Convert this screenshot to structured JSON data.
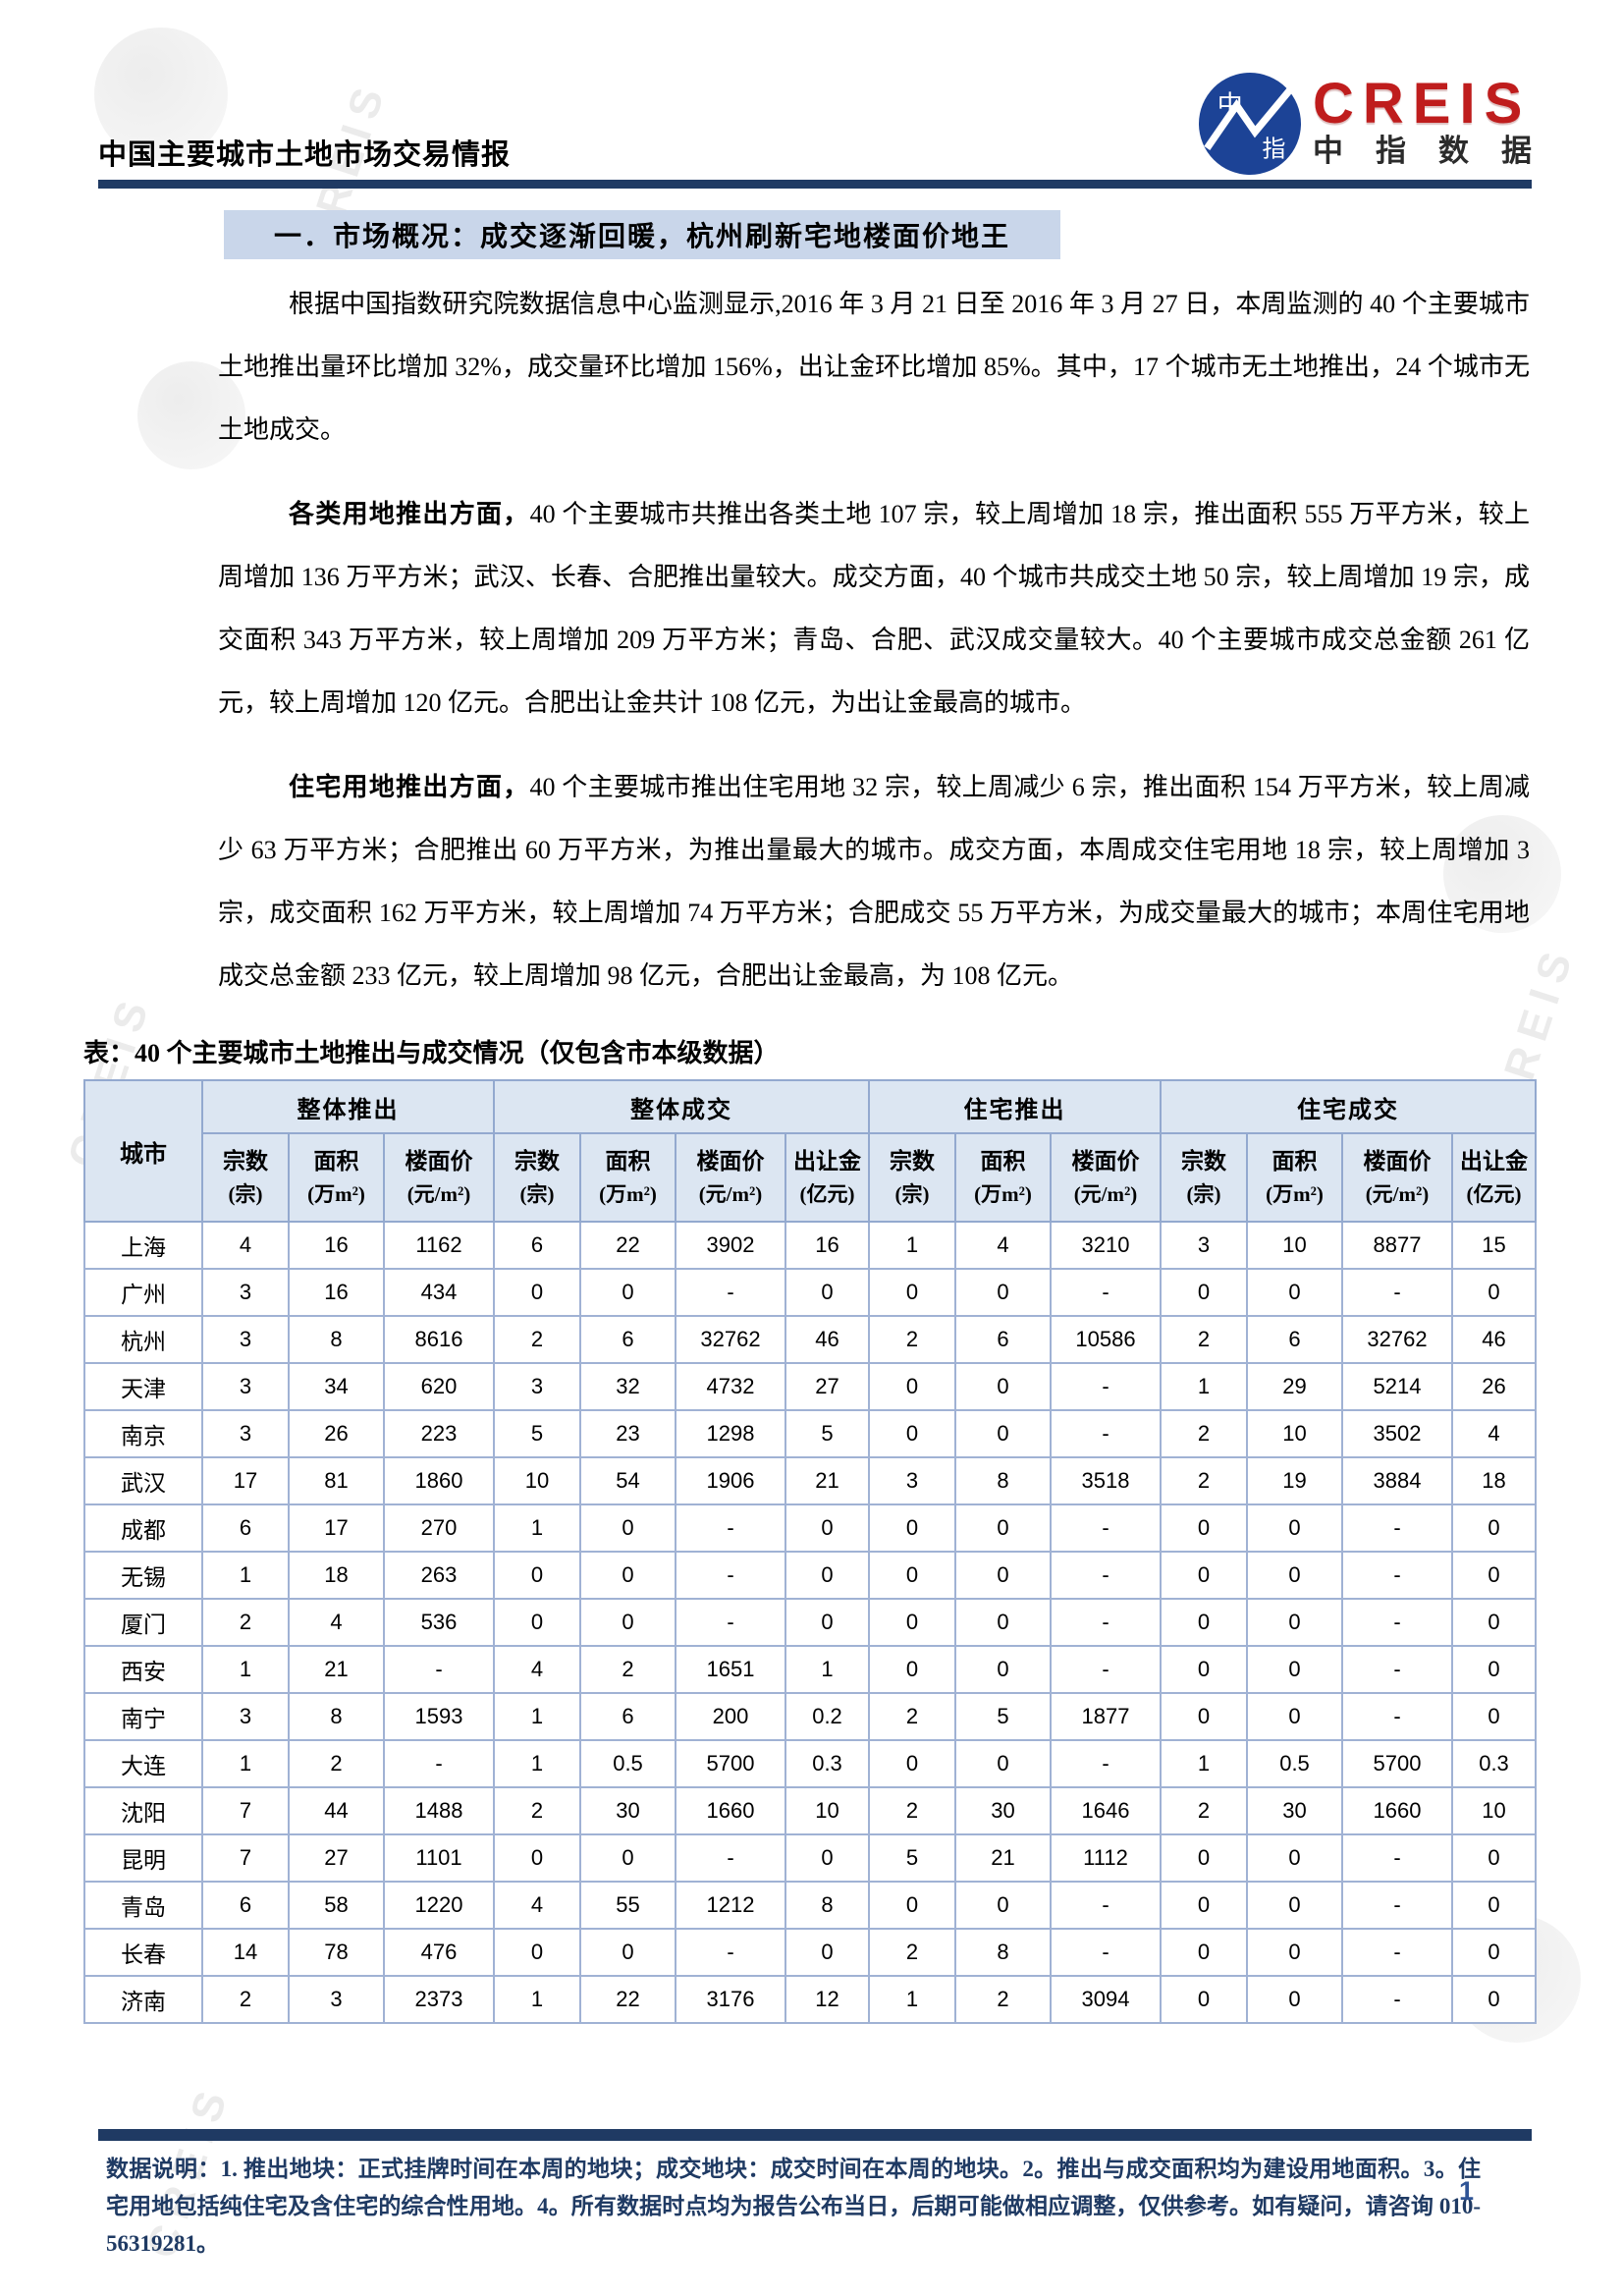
{
  "header": {
    "title": "中国主要城市土地市场交易情报",
    "logo": {
      "mark_top": "中",
      "mark_bottom": "指",
      "creis": "CREIS",
      "cn": "中指数据"
    }
  },
  "section_title": "一．市场概况：成交逐渐回暖，杭州刷新宅地楼面价地王",
  "paragraphs": [
    {
      "lead": "",
      "text": "根据中国指数研究院数据信息中心监测显示,2016 年 3 月 21 日至 2016 年 3 月 27 日，本周监测的 40 个主要城市土地推出量环比增加 32%，成交量环比增加 156%，出让金环比增加 85%。其中，17 个城市无土地推出，24 个城市无土地成交。"
    },
    {
      "lead": "各类用地推出方面，",
      "text": "40 个主要城市共推出各类土地 107 宗，较上周增加 18 宗，推出面积 555 万平方米，较上周增加 136 万平方米；武汉、长春、合肥推出量较大。成交方面，40 个城市共成交土地 50 宗，较上周增加 19 宗，成交面积 343 万平方米，较上周增加 209 万平方米；青岛、合肥、武汉成交量较大。40 个主要城市成交总金额 261 亿元，较上周增加 120 亿元。合肥出让金共计 108 亿元，为出让金最高的城市。"
    },
    {
      "lead": "住宅用地推出方面，",
      "text": "40 个主要城市推出住宅用地 32 宗，较上周减少 6 宗，推出面积 154 万平方米，较上周减少 63 万平方米；合肥推出 60 万平方米，为推出量最大的城市。成交方面，本周成交住宅用地 18 宗，较上周增加 3 宗，成交面积 162 万平方米，较上周增加 74 万平方米；合肥成交 55 万平方米，为成交量最大的城市；本周住宅用地成交总金额 233 亿元，较上周增加 98 亿元，合肥出让金最高，为 108 亿元。"
    }
  ],
  "table": {
    "caption": "表：40 个主要城市土地推出与成交情况（仅包含市本级数据）",
    "city_header": "城市",
    "groups": [
      {
        "label": "整体推出"
      },
      {
        "label": "整体成交"
      },
      {
        "label": "住宅推出"
      },
      {
        "label": "住宅成交"
      }
    ],
    "subcols": [
      {
        "label": "宗数",
        "unit": "(宗)"
      },
      {
        "label": "面积",
        "unit": "(万m²)"
      },
      {
        "label": "楼面价",
        "unit": "(元/m²)"
      },
      {
        "label": "宗数",
        "unit": "(宗)"
      },
      {
        "label": "面积",
        "unit": "(万m²)"
      },
      {
        "label": "楼面价",
        "unit": "(元/m²)"
      },
      {
        "label": "出让金",
        "unit": "(亿元)"
      },
      {
        "label": "宗数",
        "unit": "(宗)"
      },
      {
        "label": "面积",
        "unit": "(万m²)"
      },
      {
        "label": "楼面价",
        "unit": "(元/m²)"
      },
      {
        "label": "宗数",
        "unit": "(宗)"
      },
      {
        "label": "面积",
        "unit": "(万m²)"
      },
      {
        "label": "楼面价",
        "unit": "(元/m²)"
      },
      {
        "label": "出让金",
        "unit": "(亿元)"
      }
    ],
    "rows": [
      {
        "city": "上海",
        "values": [
          "4",
          "16",
          "1162",
          "6",
          "22",
          "3902",
          "16",
          "1",
          "4",
          "3210",
          "3",
          "10",
          "8877",
          "15"
        ]
      },
      {
        "city": "广州",
        "values": [
          "3",
          "16",
          "434",
          "0",
          "0",
          "-",
          "0",
          "0",
          "0",
          "-",
          "0",
          "0",
          "-",
          "0"
        ]
      },
      {
        "city": "杭州",
        "values": [
          "3",
          "8",
          "8616",
          "2",
          "6",
          "32762",
          "46",
          "2",
          "6",
          "10586",
          "2",
          "6",
          "32762",
          "46"
        ]
      },
      {
        "city": "天津",
        "values": [
          "3",
          "34",
          "620",
          "3",
          "32",
          "4732",
          "27",
          "0",
          "0",
          "-",
          "1",
          "29",
          "5214",
          "26"
        ]
      },
      {
        "city": "南京",
        "values": [
          "3",
          "26",
          "223",
          "5",
          "23",
          "1298",
          "5",
          "0",
          "0",
          "-",
          "2",
          "10",
          "3502",
          "4"
        ]
      },
      {
        "city": "武汉",
        "values": [
          "17",
          "81",
          "1860",
          "10",
          "54",
          "1906",
          "21",
          "3",
          "8",
          "3518",
          "2",
          "19",
          "3884",
          "18"
        ]
      },
      {
        "city": "成都",
        "values": [
          "6",
          "17",
          "270",
          "1",
          "0",
          "-",
          "0",
          "0",
          "0",
          "-",
          "0",
          "0",
          "-",
          "0"
        ]
      },
      {
        "city": "无锡",
        "values": [
          "1",
          "18",
          "263",
          "0",
          "0",
          "-",
          "0",
          "0",
          "0",
          "-",
          "0",
          "0",
          "-",
          "0"
        ]
      },
      {
        "city": "厦门",
        "values": [
          "2",
          "4",
          "536",
          "0",
          "0",
          "-",
          "0",
          "0",
          "0",
          "-",
          "0",
          "0",
          "-",
          "0"
        ]
      },
      {
        "city": "西安",
        "values": [
          "1",
          "21",
          "-",
          "4",
          "2",
          "1651",
          "1",
          "0",
          "0",
          "-",
          "0",
          "0",
          "-",
          "0"
        ]
      },
      {
        "city": "南宁",
        "values": [
          "3",
          "8",
          "1593",
          "1",
          "6",
          "200",
          "0.2",
          "2",
          "5",
          "1877",
          "0",
          "0",
          "-",
          "0"
        ]
      },
      {
        "city": "大连",
        "values": [
          "1",
          "2",
          "-",
          "1",
          "0.5",
          "5700",
          "0.3",
          "0",
          "0",
          "-",
          "1",
          "0.5",
          "5700",
          "0.3"
        ]
      },
      {
        "city": "沈阳",
        "values": [
          "7",
          "44",
          "1488",
          "2",
          "30",
          "1660",
          "10",
          "2",
          "30",
          "1646",
          "2",
          "30",
          "1660",
          "10"
        ]
      },
      {
        "city": "昆明",
        "values": [
          "7",
          "27",
          "1101",
          "0",
          "0",
          "-",
          "0",
          "5",
          "21",
          "1112",
          "0",
          "0",
          "-",
          "0"
        ]
      },
      {
        "city": "青岛",
        "values": [
          "6",
          "58",
          "1220",
          "4",
          "55",
          "1212",
          "8",
          "0",
          "0",
          "-",
          "0",
          "0",
          "-",
          "0"
        ]
      },
      {
        "city": "长春",
        "values": [
          "14",
          "78",
          "476",
          "0",
          "0",
          "-",
          "0",
          "2",
          "8",
          "-",
          "0",
          "0",
          "-",
          "0"
        ]
      },
      {
        "city": "济南",
        "values": [
          "2",
          "3",
          "2373",
          "1",
          "22",
          "3176",
          "12",
          "1",
          "2",
          "3094",
          "0",
          "0",
          "-",
          "0"
        ]
      }
    ]
  },
  "footer": {
    "note": "数据说明：1. 推出地块：正式挂牌时间在本周的地块；成交地块：成交时间在本周的地块。2。推出与成交面积均为建设用地面积。3。住宅用地包括纯住宅及含住宅的综合性用地。4。所有数据时点均为报告公布当日，后期可能做相应调整，仅供参考。如有疑问，请咨询 010-56319281。",
    "page_number": "1"
  },
  "watermark": {
    "text": "CREIS"
  }
}
